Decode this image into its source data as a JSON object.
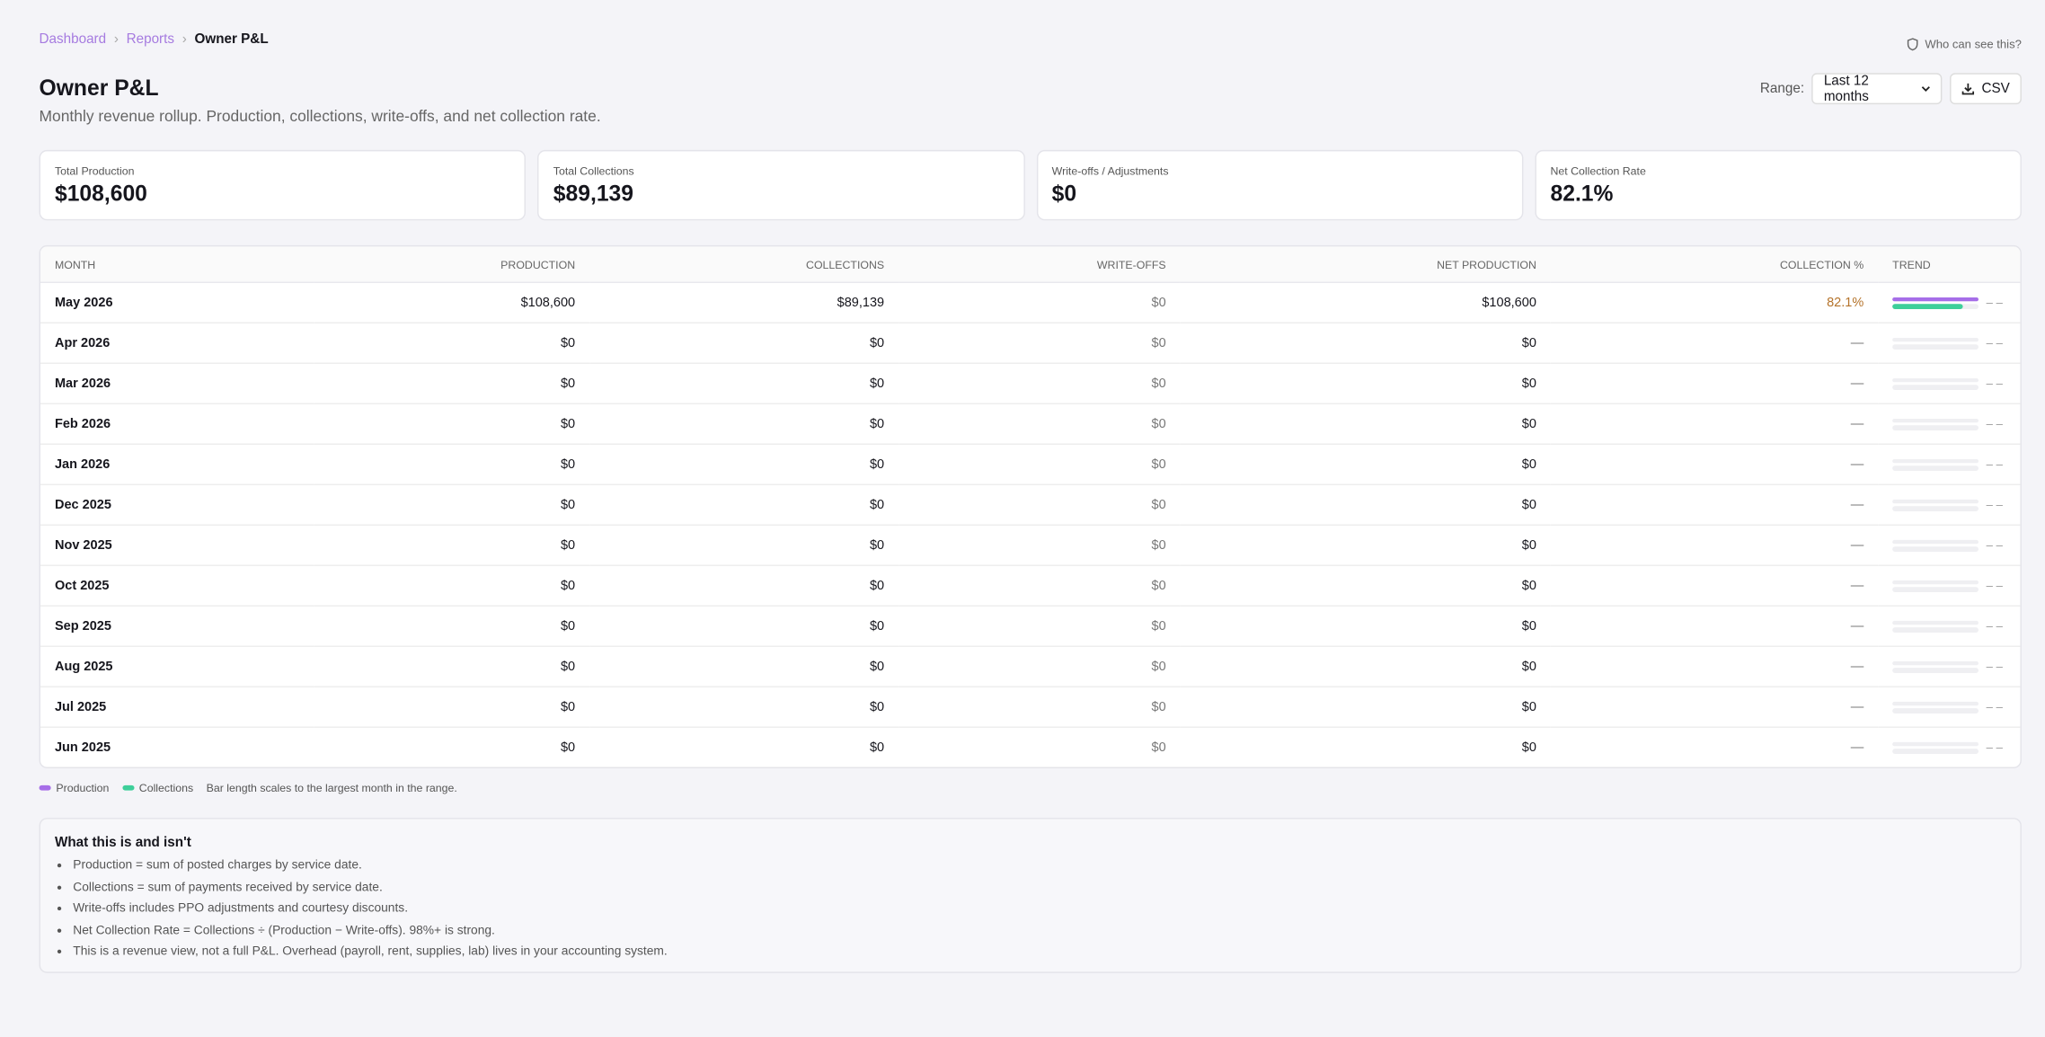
{
  "breadcrumb": [
    "Dashboard",
    "Reports",
    "Owner P&L"
  ],
  "visibility_link": "Who can see this?",
  "header": {
    "title": "Owner P&L",
    "subtitle": "Monthly revenue rollup. Production, collections, write-offs, and net collection rate."
  },
  "controls": {
    "range_label": "Range:",
    "range_value": "Last 12 months",
    "csv_button": "CSV"
  },
  "kpis": [
    {
      "label": "Total Production",
      "value": "$108,600"
    },
    {
      "label": "Total Collections",
      "value": "$89,139"
    },
    {
      "label": "Write-offs / Adjustments",
      "value": "$0"
    },
    {
      "label": "Net Collection Rate",
      "value": "82.1%"
    }
  ],
  "table": {
    "columns": [
      "MONTH",
      "PRODUCTION",
      "COLLECTIONS",
      "WRITE-OFFS",
      "NET PRODUCTION",
      "COLLECTION %",
      "TREND"
    ],
    "rows": [
      {
        "month": "May 2026",
        "production": {
          "value": 108600,
          "label": "$108,600"
        },
        "collections": {
          "value": 89139,
          "label": "$89,139"
        },
        "writeoffs": "$0",
        "net": "$108,600",
        "rate": "82.1%",
        "trend": "– –"
      },
      {
        "month": "Apr 2026",
        "production": {
          "value": 0,
          "label": "$0"
        },
        "collections": {
          "value": 0,
          "label": "$0"
        },
        "writeoffs": "$0",
        "net": "$0",
        "rate": "—",
        "trend": "– –"
      },
      {
        "month": "Mar 2026",
        "production": {
          "value": 0,
          "label": "$0"
        },
        "collections": {
          "value": 0,
          "label": "$0"
        },
        "writeoffs": "$0",
        "net": "$0",
        "rate": "—",
        "trend": "– –"
      },
      {
        "month": "Feb 2026",
        "production": {
          "value": 0,
          "label": "$0"
        },
        "collections": {
          "value": 0,
          "label": "$0"
        },
        "writeoffs": "$0",
        "net": "$0",
        "rate": "—",
        "trend": "– –"
      },
      {
        "month": "Jan 2026",
        "production": {
          "value": 0,
          "label": "$0"
        },
        "collections": {
          "value": 0,
          "label": "$0"
        },
        "writeoffs": "$0",
        "net": "$0",
        "rate": "—",
        "trend": "– –"
      },
      {
        "month": "Dec 2025",
        "production": {
          "value": 0,
          "label": "$0"
        },
        "collections": {
          "value": 0,
          "label": "$0"
        },
        "writeoffs": "$0",
        "net": "$0",
        "rate": "—",
        "trend": "– –"
      },
      {
        "month": "Nov 2025",
        "production": {
          "value": 0,
          "label": "$0"
        },
        "collections": {
          "value": 0,
          "label": "$0"
        },
        "writeoffs": "$0",
        "net": "$0",
        "rate": "—",
        "trend": "– –"
      },
      {
        "month": "Oct 2025",
        "production": {
          "value": 0,
          "label": "$0"
        },
        "collections": {
          "value": 0,
          "label": "$0"
        },
        "writeoffs": "$0",
        "net": "$0",
        "rate": "—",
        "trend": "– –"
      },
      {
        "month": "Sep 2025",
        "production": {
          "value": 0,
          "label": "$0"
        },
        "collections": {
          "value": 0,
          "label": "$0"
        },
        "writeoffs": "$0",
        "net": "$0",
        "rate": "—",
        "trend": "– –"
      },
      {
        "month": "Aug 2025",
        "production": {
          "value": 0,
          "label": "$0"
        },
        "collections": {
          "value": 0,
          "label": "$0"
        },
        "writeoffs": "$0",
        "net": "$0",
        "rate": "—",
        "trend": "– –"
      },
      {
        "month": "Jul 2025",
        "production": {
          "value": 0,
          "label": "$0"
        },
        "collections": {
          "value": 0,
          "label": "$0"
        },
        "writeoffs": "$0",
        "net": "$0",
        "rate": "—",
        "trend": "– –"
      },
      {
        "month": "Jun 2025",
        "production": {
          "value": 0,
          "label": "$0"
        },
        "collections": {
          "value": 0,
          "label": "$0"
        },
        "writeoffs": "$0",
        "net": "$0",
        "rate": "—",
        "trend": "– –"
      }
    ]
  },
  "legend": {
    "items": [
      {
        "name": "Production",
        "color": "#a66ee8"
      },
      {
        "name": "Collections",
        "color": "#3ecf9a"
      }
    ],
    "note": "Bar length scales to the largest month in the range."
  },
  "notes": {
    "title": "What this is and isn't",
    "items": [
      "Production = sum of posted charges by service date.",
      "Collections = sum of payments received by service date.",
      "Write-offs includes PPO adjustments and courtesy discounts.",
      "Net Collection Rate = Collections ÷ (Production − Write-offs). 98%+ is strong.",
      "This is a revenue view, not a full P&L. Overhead (payroll, rent, supplies, lab) lives in your accounting system."
    ]
  }
}
